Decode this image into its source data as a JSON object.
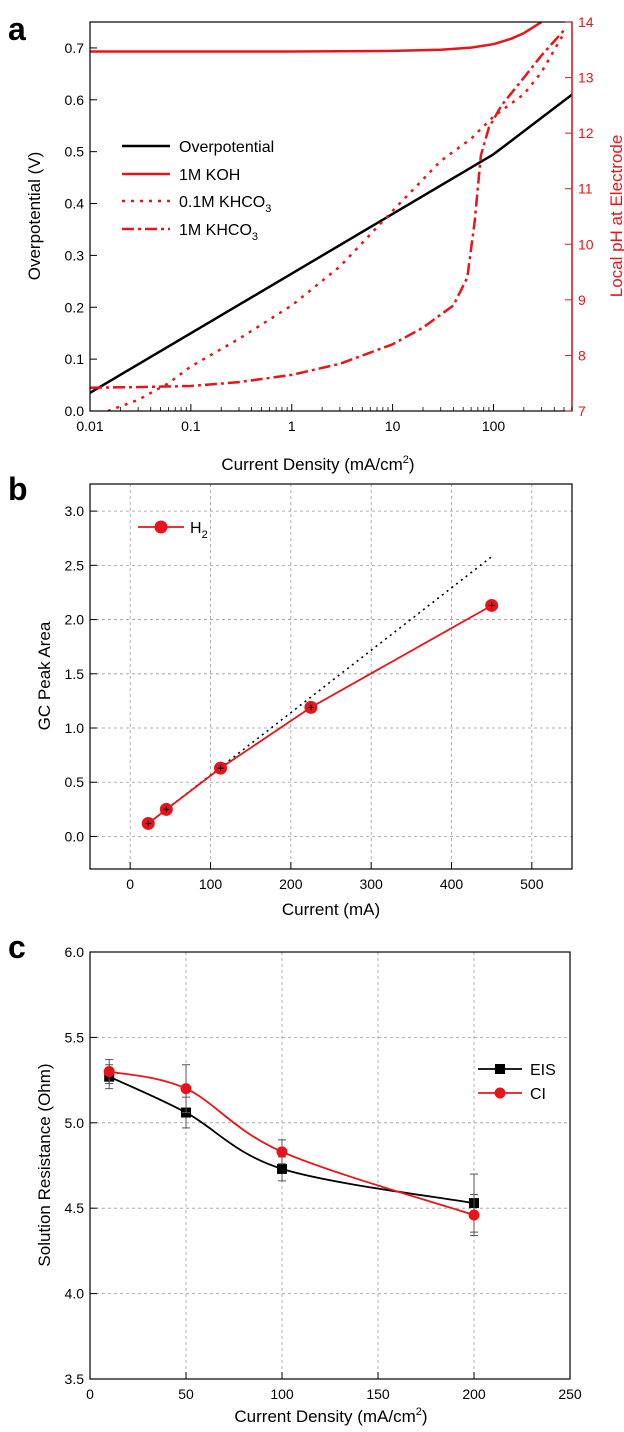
{
  "panel_a": {
    "label": "a",
    "xlabel": "Current Density (mA/cm",
    "xlabel_sup": "2",
    "xlabel_end": ")",
    "ylabel_left": "Overpotential (V)",
    "ylabel_right": "Local pH at Electrode",
    "legend": [
      "Overpotential",
      "1M KOH",
      "0.1M KHCO",
      "1M KHCO"
    ],
    "legend_sub": "3"
  },
  "panel_b": {
    "label": "b",
    "xlabel": "Current (mA)",
    "ylabel": "GC Peak Area",
    "legend": "H",
    "legend_sub": "2"
  },
  "panel_c": {
    "label": "c",
    "xlabel": "Current Density (mA/cm",
    "xlabel_sup": "2",
    "xlabel_end": ")",
    "ylabel": "Solution Resistance (Ohm)",
    "legend": [
      "EIS",
      "CI"
    ]
  },
  "chart_data": [
    {
      "type": "line",
      "xscale": "log",
      "xlim": [
        0.01,
        600
      ],
      "ylim": [
        0,
        0.75
      ],
      "y2lim": [
        7,
        14
      ],
      "x_ticks": [
        "0.01",
        "0.1",
        "1",
        "10",
        "100"
      ],
      "y_ticks": [
        "0.0",
        "0.1",
        "0.2",
        "0.3",
        "0.4",
        "0.5",
        "0.6",
        "0.7"
      ],
      "y2_ticks": [
        "7",
        "8",
        "9",
        "10",
        "11",
        "12",
        "13",
        "14"
      ],
      "legend_position": "middle-left",
      "series": [
        {
          "name": "Overpotential",
          "axis": "left",
          "color": "#000000",
          "style": "solid",
          "x": [
            0.01,
            0.1,
            1,
            10,
            100,
            600
          ],
          "y": [
            0.035,
            0.15,
            0.265,
            0.38,
            0.495,
            0.61
          ]
        },
        {
          "name": "1M KOH",
          "axis": "right",
          "color": "#e8141a",
          "style": "solid",
          "x": [
            0.01,
            0.1,
            1,
            10,
            30,
            60,
            100,
            150,
            200,
            300
          ],
          "y": [
            13.47,
            13.47,
            13.47,
            13.48,
            13.5,
            13.54,
            13.6,
            13.7,
            13.8,
            14.0
          ]
        },
        {
          "name": "0.1M KHCO3",
          "axis": "right",
          "color": "#e8141a",
          "style": "dotted",
          "x": [
            0.015,
            0.03,
            0.06,
            0.1,
            0.3,
            1,
            3,
            10,
            30,
            60,
            100,
            200,
            300,
            500
          ],
          "y": [
            7.0,
            7.2,
            7.5,
            7.8,
            8.3,
            8.9,
            9.6,
            10.6,
            11.5,
            11.9,
            12.3,
            12.7,
            13.1,
            13.8
          ]
        },
        {
          "name": "1M KHCO3",
          "axis": "right",
          "color": "#e8141a",
          "style": "dashdot",
          "x": [
            0.01,
            0.03,
            0.1,
            0.3,
            1,
            3,
            10,
            20,
            40,
            55,
            65,
            75,
            90,
            120,
            200,
            300,
            500
          ],
          "y": [
            7.42,
            7.43,
            7.45,
            7.52,
            7.65,
            7.85,
            8.2,
            8.5,
            8.9,
            9.4,
            10.4,
            11.6,
            12.1,
            12.5,
            13.0,
            13.4,
            13.85
          ]
        }
      ]
    },
    {
      "type": "scatter",
      "xlim": [
        -50,
        550
      ],
      "ylim": [
        -0.3,
        3.25
      ],
      "x_ticks": [
        "0",
        "100",
        "200",
        "300",
        "400",
        "500"
      ],
      "y_ticks": [
        "0.0",
        "0.5",
        "1.0",
        "1.5",
        "2.0",
        "2.5",
        "3.0"
      ],
      "grid": true,
      "legend_position": "top-left",
      "series": [
        {
          "name": "H2",
          "color": "#e8141a",
          "x": [
            22.5,
            45,
            112.5,
            225,
            450
          ],
          "y": [
            0.12,
            0.25,
            0.63,
            1.19,
            2.13
          ]
        },
        {
          "name": "",
          "style": "dotted",
          "color": "#000000",
          "x": [
            22.5,
            450
          ],
          "y": [
            0.12,
            2.58
          ]
        }
      ]
    },
    {
      "type": "scatter",
      "xlim": [
        0,
        250
      ],
      "ylim": [
        3.5,
        6.0
      ],
      "x_ticks": [
        "0",
        "50",
        "100",
        "150",
        "200",
        "250"
      ],
      "y_ticks": [
        "3.5",
        "4.0",
        "4.5",
        "5.0",
        "5.5",
        "6.0"
      ],
      "grid": true,
      "legend_position": "top-right",
      "series": [
        {
          "name": "EIS",
          "color": "#000000",
          "marker": "square",
          "x": [
            10,
            50,
            100,
            200
          ],
          "y": [
            5.27,
            5.06,
            4.73,
            4.53
          ],
          "err": [
            0.07,
            0.09,
            0.07,
            0.17
          ]
        },
        {
          "name": "CI",
          "color": "#e8141a",
          "marker": "circle",
          "x": [
            10,
            50,
            100,
            200
          ],
          "y": [
            5.3,
            5.2,
            4.83,
            4.46
          ],
          "err": [
            0.07,
            0.14,
            0.07,
            0.12
          ]
        }
      ]
    }
  ]
}
